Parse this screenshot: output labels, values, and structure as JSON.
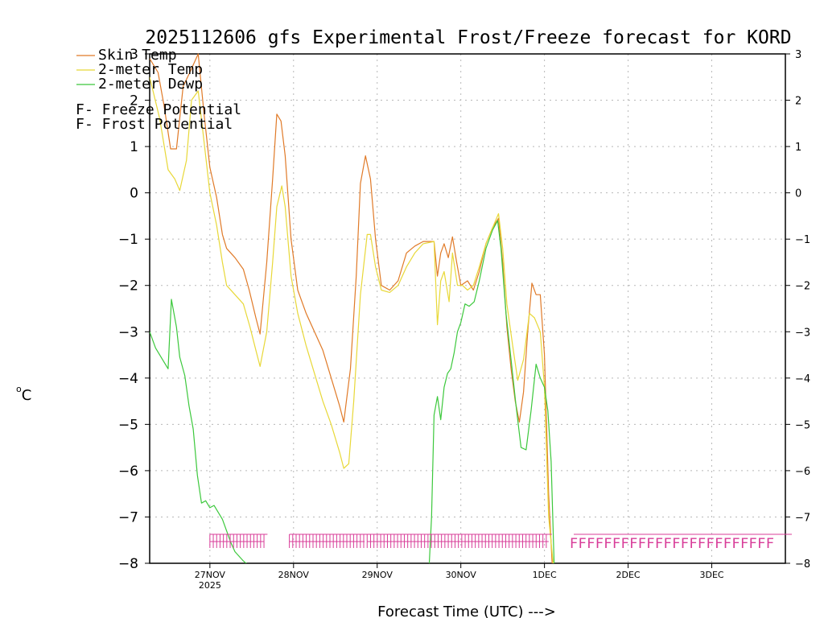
{
  "chart_data": {
    "type": "line",
    "title": "2025112606 gfs Experimental Frost/Freeze forecast for KORD",
    "xlabel": "Forecast Time (UTC) --->",
    "ylabel": "°C",
    "ylabel_sup": "o",
    "ylabel_main": "C",
    "ylim": [
      -8,
      3
    ],
    "xlim": [
      -0.72,
      6.88
    ],
    "y_ticks": [
      3,
      2,
      1,
      0,
      -1,
      -2,
      -3,
      -4,
      -5,
      -6,
      -7,
      -8
    ],
    "y_tick_labels": [
      "3",
      "2",
      "1",
      "0",
      "−1",
      "−2",
      "−3",
      "−4",
      "−5",
      "−6",
      "−7",
      "−8"
    ],
    "x_ticks": [
      {
        "x": 0,
        "label": "27NOV",
        "sub": "2025"
      },
      {
        "x": 1,
        "label": "28NOV",
        "sub": ""
      },
      {
        "x": 2,
        "label": "29NOV",
        "sub": ""
      },
      {
        "x": 3,
        "label": "30NOV",
        "sub": ""
      },
      {
        "x": 4,
        "label": "1DEC",
        "sub": ""
      },
      {
        "x": 5,
        "label": "2DEC",
        "sub": ""
      },
      {
        "x": 6,
        "label": "3DEC",
        "sub": ""
      }
    ],
    "grid": true,
    "series": [
      {
        "name": "Skin Temp",
        "color": "#e07a28",
        "points": [
          [
            -0.72,
            2.9
          ],
          [
            -0.62,
            2.6
          ],
          [
            -0.55,
            1.9
          ],
          [
            -0.47,
            0.95
          ],
          [
            -0.4,
            0.95
          ],
          [
            -0.32,
            2.3
          ],
          [
            -0.24,
            2.6
          ],
          [
            -0.14,
            3.0
          ],
          [
            -0.07,
            1.7
          ],
          [
            0.0,
            0.55
          ],
          [
            0.08,
            -0.1
          ],
          [
            0.15,
            -0.9
          ],
          [
            0.2,
            -1.2
          ],
          [
            0.3,
            -1.4
          ],
          [
            0.4,
            -1.65
          ],
          [
            0.47,
            -2.1
          ],
          [
            0.55,
            -2.7
          ],
          [
            0.6,
            -3.05
          ],
          [
            0.68,
            -1.5
          ],
          [
            0.75,
            0.3
          ],
          [
            0.8,
            1.7
          ],
          [
            0.85,
            1.55
          ],
          [
            0.9,
            0.8
          ],
          [
            0.97,
            -1.0
          ],
          [
            1.05,
            -2.1
          ],
          [
            1.15,
            -2.6
          ],
          [
            1.25,
            -3.0
          ],
          [
            1.35,
            -3.4
          ],
          [
            1.45,
            -4.0
          ],
          [
            1.55,
            -4.6
          ],
          [
            1.6,
            -4.95
          ],
          [
            1.68,
            -3.8
          ],
          [
            1.75,
            -1.8
          ],
          [
            1.8,
            0.2
          ],
          [
            1.86,
            0.8
          ],
          [
            1.92,
            0.3
          ],
          [
            1.98,
            -1.0
          ],
          [
            2.05,
            -2.0
          ],
          [
            2.15,
            -2.1
          ],
          [
            2.25,
            -1.9
          ],
          [
            2.35,
            -1.3
          ],
          [
            2.45,
            -1.15
          ],
          [
            2.55,
            -1.05
          ],
          [
            2.68,
            -1.05
          ],
          [
            2.72,
            -1.8
          ],
          [
            2.76,
            -1.3
          ],
          [
            2.8,
            -1.1
          ],
          [
            2.85,
            -1.4
          ],
          [
            2.9,
            -0.95
          ],
          [
            2.95,
            -1.5
          ],
          [
            3.0,
            -2.0
          ],
          [
            3.08,
            -1.9
          ],
          [
            3.15,
            -2.1
          ],
          [
            3.22,
            -1.7
          ],
          [
            3.3,
            -1.1
          ],
          [
            3.38,
            -0.75
          ],
          [
            3.45,
            -0.55
          ],
          [
            3.5,
            -1.5
          ],
          [
            3.55,
            -2.9
          ],
          [
            3.6,
            -3.8
          ],
          [
            3.65,
            -4.5
          ],
          [
            3.7,
            -4.95
          ],
          [
            3.75,
            -4.3
          ],
          [
            3.8,
            -3.0
          ],
          [
            3.85,
            -1.95
          ],
          [
            3.9,
            -2.2
          ],
          [
            3.95,
            -2.2
          ],
          [
            4.0,
            -3.5
          ],
          [
            4.05,
            -6.5
          ],
          [
            4.1,
            -8.3
          ]
        ]
      },
      {
        "name": "2-meter Temp",
        "color": "#e8d838",
        "points": [
          [
            -0.72,
            2.5
          ],
          [
            -0.6,
            1.6
          ],
          [
            -0.5,
            0.5
          ],
          [
            -0.42,
            0.3
          ],
          [
            -0.36,
            0.05
          ],
          [
            -0.28,
            0.7
          ],
          [
            -0.22,
            2.0
          ],
          [
            -0.14,
            2.2
          ],
          [
            -0.07,
            1.1
          ],
          [
            0.0,
            0.0
          ],
          [
            0.08,
            -0.7
          ],
          [
            0.15,
            -1.5
          ],
          [
            0.2,
            -2.0
          ],
          [
            0.3,
            -2.2
          ],
          [
            0.4,
            -2.4
          ],
          [
            0.48,
            -2.9
          ],
          [
            0.55,
            -3.4
          ],
          [
            0.6,
            -3.75
          ],
          [
            0.68,
            -3.0
          ],
          [
            0.75,
            -1.5
          ],
          [
            0.8,
            -0.3
          ],
          [
            0.86,
            0.15
          ],
          [
            0.9,
            -0.3
          ],
          [
            0.97,
            -1.8
          ],
          [
            1.05,
            -2.6
          ],
          [
            1.15,
            -3.3
          ],
          [
            1.25,
            -3.9
          ],
          [
            1.35,
            -4.5
          ],
          [
            1.45,
            -5.0
          ],
          [
            1.55,
            -5.6
          ],
          [
            1.6,
            -5.95
          ],
          [
            1.66,
            -5.85
          ],
          [
            1.72,
            -4.5
          ],
          [
            1.8,
            -2.2
          ],
          [
            1.88,
            -0.9
          ],
          [
            1.92,
            -0.9
          ],
          [
            1.98,
            -1.6
          ],
          [
            2.05,
            -2.1
          ],
          [
            2.15,
            -2.15
          ],
          [
            2.25,
            -2.0
          ],
          [
            2.35,
            -1.6
          ],
          [
            2.45,
            -1.3
          ],
          [
            2.55,
            -1.1
          ],
          [
            2.68,
            -1.05
          ],
          [
            2.72,
            -2.85
          ],
          [
            2.76,
            -1.9
          ],
          [
            2.8,
            -1.7
          ],
          [
            2.86,
            -2.35
          ],
          [
            2.9,
            -1.3
          ],
          [
            2.96,
            -2.0
          ],
          [
            3.02,
            -2.0
          ],
          [
            3.08,
            -2.1
          ],
          [
            3.15,
            -2.0
          ],
          [
            3.22,
            -1.6
          ],
          [
            3.3,
            -1.1
          ],
          [
            3.38,
            -0.75
          ],
          [
            3.45,
            -0.45
          ],
          [
            3.5,
            -1.2
          ],
          [
            3.55,
            -2.4
          ],
          [
            3.62,
            -3.3
          ],
          [
            3.68,
            -4.05
          ],
          [
            3.75,
            -3.6
          ],
          [
            3.82,
            -2.6
          ],
          [
            3.88,
            -2.7
          ],
          [
            3.95,
            -3.0
          ],
          [
            4.0,
            -4.2
          ],
          [
            4.05,
            -7.0
          ],
          [
            4.12,
            -8.3
          ]
        ]
      },
      {
        "name": "2-meter Dewp",
        "color": "#3cc83c",
        "points": [
          [
            -0.72,
            -3.0
          ],
          [
            -0.65,
            -3.35
          ],
          [
            -0.55,
            -3.65
          ],
          [
            -0.5,
            -3.8
          ],
          [
            -0.46,
            -2.3
          ],
          [
            -0.4,
            -2.9
          ],
          [
            -0.36,
            -3.55
          ],
          [
            -0.3,
            -3.95
          ],
          [
            -0.25,
            -4.6
          ],
          [
            -0.2,
            -5.1
          ],
          [
            -0.15,
            -6.1
          ],
          [
            -0.1,
            -6.7
          ],
          [
            -0.05,
            -6.65
          ],
          [
            0.0,
            -6.8
          ],
          [
            0.05,
            -6.75
          ],
          [
            0.1,
            -6.9
          ],
          [
            0.15,
            -7.05
          ],
          [
            0.2,
            -7.3
          ],
          [
            0.25,
            -7.55
          ],
          [
            0.3,
            -7.75
          ],
          [
            0.4,
            -7.95
          ],
          [
            0.5,
            -8.1
          ],
          [
            2.62,
            -8.1
          ],
          [
            2.65,
            -7.0
          ],
          [
            2.68,
            -4.8
          ],
          [
            2.72,
            -4.4
          ],
          [
            2.76,
            -4.9
          ],
          [
            2.8,
            -4.2
          ],
          [
            2.84,
            -3.9
          ],
          [
            2.88,
            -3.8
          ],
          [
            2.92,
            -3.45
          ],
          [
            2.96,
            -3.0
          ],
          [
            3.0,
            -2.8
          ],
          [
            3.05,
            -2.4
          ],
          [
            3.1,
            -2.45
          ],
          [
            3.16,
            -2.35
          ],
          [
            3.22,
            -1.9
          ],
          [
            3.3,
            -1.2
          ],
          [
            3.38,
            -0.8
          ],
          [
            3.44,
            -0.6
          ],
          [
            3.48,
            -1.2
          ],
          [
            3.54,
            -2.6
          ],
          [
            3.6,
            -3.6
          ],
          [
            3.66,
            -4.6
          ],
          [
            3.72,
            -5.5
          ],
          [
            3.78,
            -5.55
          ],
          [
            3.84,
            -4.7
          ],
          [
            3.9,
            -3.7
          ],
          [
            3.95,
            -4.0
          ],
          [
            4.0,
            -4.2
          ],
          [
            4.04,
            -4.7
          ],
          [
            4.08,
            -5.8
          ],
          [
            4.12,
            -8.3
          ]
        ]
      }
    ],
    "freeze_flags": {
      "label": "F",
      "color": "#d83c98",
      "dense_runs": [
        [
          0.0,
          0.65
        ],
        [
          0.95,
          1.85
        ],
        [
          1.88,
          4.05
        ]
      ],
      "sparse_start": 4.35,
      "sparse_end": 6.78,
      "sparse_step": 0.102
    },
    "legend": [
      {
        "label": "Skin Temp",
        "color": "#e07a28",
        "kind": "line"
      },
      {
        "label": "2-meter Temp",
        "color": "#e8d838",
        "kind": "line"
      },
      {
        "label": "2-meter Dewp",
        "color": "#3cc83c",
        "kind": "line"
      },
      {
        "letter": "F",
        "label": " - Freeze Potential",
        "color": "#d83c98",
        "kind": "flag"
      },
      {
        "letter": "F",
        "label": " - Frost Potential",
        "color": "#5050e0",
        "kind": "flag"
      }
    ]
  }
}
